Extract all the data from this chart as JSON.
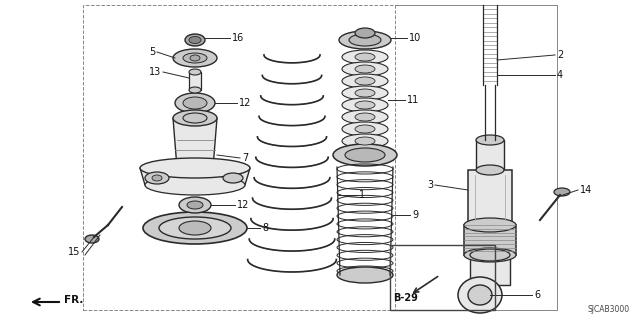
{
  "diagram_code": "SJCAB3000",
  "bg_color": "#ffffff",
  "lc": "#2a2a2a",
  "fc_light": "#e8e8e8",
  "fc_mid": "#cccccc",
  "fc_dark": "#aaaaaa"
}
